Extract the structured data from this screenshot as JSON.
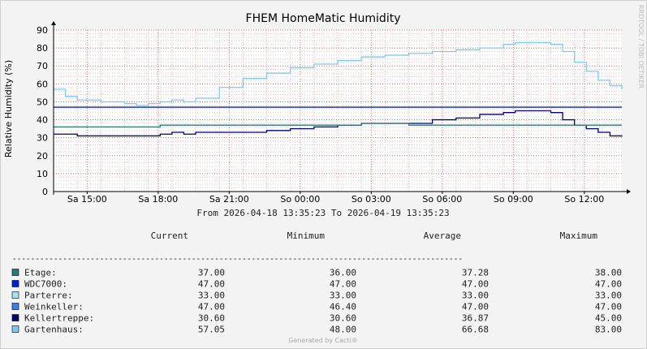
{
  "chart_data": {
    "type": "line",
    "title": "FHEM HomeMatic Humidity",
    "ylabel": "Relative Humidity (%)",
    "ylim": [
      0,
      90
    ],
    "yticks": [
      0,
      10,
      20,
      30,
      40,
      50,
      60,
      70,
      80,
      90
    ],
    "xticks": [
      "Sa 15:00",
      "Sa 18:00",
      "Sa 21:00",
      "So 00:00",
      "So 03:00",
      "So 06:00",
      "So 09:00",
      "So 12:00"
    ],
    "xtick_hours": [
      1.417,
      4.417,
      7.417,
      10.417,
      13.417,
      16.417,
      19.417,
      22.417
    ],
    "xlim_hours": [
      0,
      24
    ],
    "grid": true,
    "x": [
      0,
      0.5,
      1,
      1.5,
      2,
      2.5,
      3,
      3.5,
      4,
      4.5,
      5,
      5.5,
      6,
      7,
      8,
      9,
      10,
      11,
      12,
      13,
      14,
      15,
      16,
      17,
      18,
      19,
      19.5,
      20,
      20.5,
      21,
      21.5,
      22,
      22.5,
      23,
      23.5,
      24
    ],
    "series": [
      {
        "name": "Gartenhaus",
        "color": "#7ec8f0",
        "values": [
          57,
          53,
          51,
          51,
          50,
          50,
          49,
          48,
          49,
          50,
          51,
          50,
          52,
          58,
          63,
          66,
          69,
          71,
          73,
          75,
          76,
          77,
          78,
          79,
          80,
          82,
          83,
          83,
          83,
          82,
          78,
          72,
          67,
          62,
          59,
          57
        ]
      },
      {
        "name": "Kellertreppe",
        "color": "#00006e",
        "values": [
          32,
          32,
          31,
          31,
          31,
          31,
          31,
          31,
          31,
          32,
          33,
          32,
          33,
          33,
          33,
          34,
          35,
          36,
          37,
          38,
          38,
          38,
          40,
          41,
          43,
          44,
          45,
          45,
          45,
          44,
          40,
          37,
          35,
          33,
          31,
          30.6
        ]
      },
      {
        "name": "Etage",
        "color": "#2a7a74",
        "values": [
          36,
          36,
          36,
          36,
          36,
          36,
          36,
          36,
          36,
          37,
          37,
          37,
          37,
          37,
          37,
          37,
          37,
          37,
          37,
          38,
          38,
          37,
          37,
          37,
          37,
          37,
          37,
          37,
          37,
          37,
          37,
          37,
          37,
          37,
          37,
          37
        ]
      },
      {
        "name": "WDC7000",
        "color": "#0022cc",
        "values": [
          47,
          47,
          47,
          47,
          47,
          47,
          47,
          47,
          47,
          47,
          47,
          47,
          47,
          47,
          47,
          47,
          47,
          47,
          47,
          47,
          47,
          47,
          47,
          47,
          47,
          47,
          47,
          47,
          47,
          47,
          47,
          47,
          47,
          47,
          47,
          47
        ]
      }
    ]
  },
  "side_label": "RRDTOOL / TOBI OETIKER",
  "range_text": "From 2026-04-18 13:35:23 To 2026-04-19 13:35:23",
  "legend": {
    "headers": [
      "Current",
      "Minimum",
      "Average",
      "Maximum"
    ],
    "separator": "--------------------------------------------------------------------------------------------------",
    "rows": [
      {
        "label": "Etage:",
        "color": "#2a7a74",
        "values": [
          "37.00",
          "36.00",
          "37.28",
          "38.00"
        ]
      },
      {
        "label": "WDC7000:",
        "color": "#0022cc",
        "values": [
          "47.00",
          "47.00",
          "47.00",
          "47.00"
        ]
      },
      {
        "label": "Parterre:",
        "color": "#a8dff0",
        "values": [
          "33.00",
          "33.00",
          "33.00",
          "33.00"
        ]
      },
      {
        "label": "Weinkeller:",
        "color": "#3a7fe0",
        "values": [
          "47.00",
          "46.40",
          "47.00",
          "47.00"
        ]
      },
      {
        "label": "Kellertreppe:",
        "color": "#00006e",
        "values": [
          "30.60",
          "30.60",
          "36.87",
          "45.00"
        ]
      },
      {
        "label": "Gartenhaus:",
        "color": "#7ec8f0",
        "values": [
          "57.05",
          "48.00",
          "66.68",
          "83.00"
        ]
      }
    ]
  },
  "footer": "Generated by Cacti®"
}
